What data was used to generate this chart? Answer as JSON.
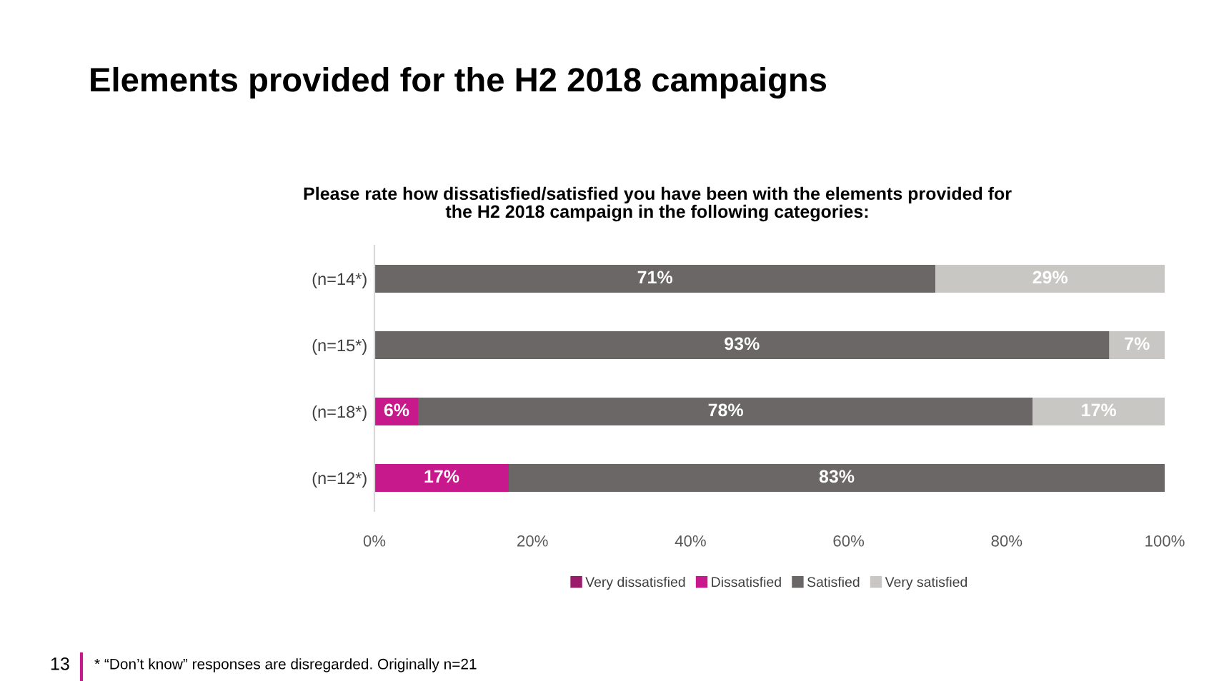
{
  "chart_data": {
    "type": "bar",
    "orientation": "horizontal",
    "stacked": true,
    "title": "Elements provided for the H2 2018 campaigns",
    "subtitle": "Please rate how dissatisfied/satisfied you have been with the elements provided for\nthe H2 2018 campaign in the following categories:",
    "categories": [
      "(n=14*)",
      "(n=15*)",
      "(n=18*)",
      "(n=12*)"
    ],
    "series": [
      {
        "name": "Very dissatisfied",
        "color": "#9b1b6a",
        "values": [
          0,
          0,
          0,
          0
        ],
        "value_labels": [
          null,
          null,
          null,
          null
        ]
      },
      {
        "name": "Dissatisfied",
        "color": "#c8198c",
        "values": [
          0,
          0,
          5.6,
          17
        ],
        "value_labels": [
          null,
          null,
          "6%",
          "17%"
        ]
      },
      {
        "name": "Satisfied",
        "color": "#6b6766",
        "values": [
          71,
          93,
          77.7,
          83
        ],
        "value_labels": [
          "71%",
          "93%",
          "78%",
          "83%"
        ]
      },
      {
        "name": "Very satisfied",
        "color": "#c9c7c3",
        "values": [
          29,
          7,
          16.7,
          0
        ],
        "value_labels": [
          "29%",
          "7%",
          "17%",
          null
        ]
      }
    ],
    "xlim": [
      0,
      100
    ],
    "xticks": [
      {
        "value": 0,
        "label": "0%"
      },
      {
        "value": 20,
        "label": "20%"
      },
      {
        "value": 40,
        "label": "40%"
      },
      {
        "value": 60,
        "label": "60%"
      },
      {
        "value": 80,
        "label": "80%"
      },
      {
        "value": 100,
        "label": "100%"
      }
    ],
    "grid": false,
    "legend": "bottom",
    "annotations": [
      "13",
      "* “Don’t know” responses are disregarded. Originally n=21"
    ]
  }
}
